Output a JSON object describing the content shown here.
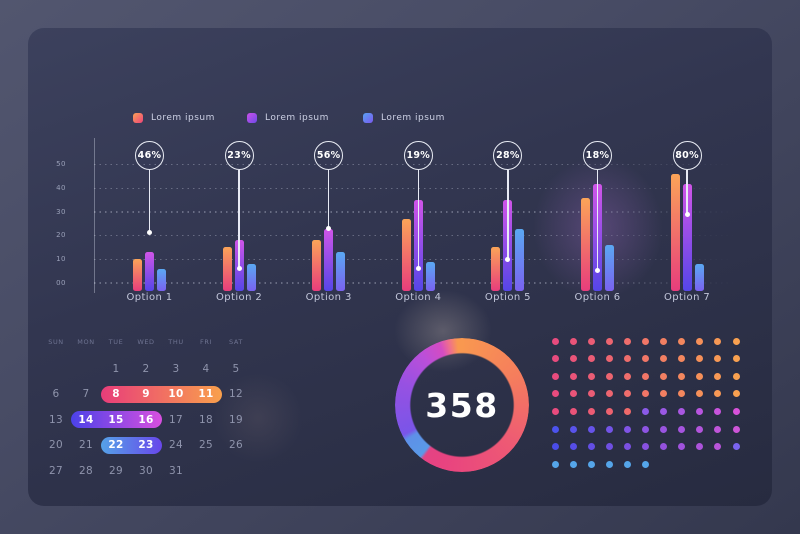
{
  "colors": {
    "page_bg_top": "#52566f",
    "page_bg_bottom": "#34384e",
    "panel_top": "#3c415d",
    "panel_bottom": "#272b40",
    "grid_dots": "#e1e6f6",
    "text_light": "#ccd0e4",
    "text_muted": "#8f94ac"
  },
  "legend": {
    "items": [
      {
        "label": "Lorem ipsum",
        "color_top": "#f9a256",
        "color_bottom": "#ee4379"
      },
      {
        "label": "Lorem ipsum",
        "color_top": "#cb50e8",
        "color_bottom": "#6f4ae8"
      },
      {
        "label": "Lorem ipsum",
        "color_top": "#58a2f0",
        "color_bottom": "#7a58f0"
      }
    ]
  },
  "chart_data": {
    "type": "bar",
    "categories": [
      "Option 1",
      "Option 2",
      "Option 3",
      "Option 4",
      "Option 5",
      "Option 6",
      "Option 7"
    ],
    "series": [
      {
        "name": "Lorem ipsum",
        "color_top": "#fba458",
        "color_bottom": "#e83d7c",
        "values": [
          10,
          15,
          18,
          27,
          15,
          36,
          46
        ]
      },
      {
        "name": "Lorem ipsum",
        "color_top": "#d055e8",
        "color_bottom": "#5546e8",
        "values": [
          13,
          18,
          23,
          35,
          35,
          42,
          42
        ]
      },
      {
        "name": "Lorem ipsum",
        "color_top": "#5aa8f2",
        "color_bottom": "#7a62f0",
        "values": [
          6,
          8,
          13,
          9,
          23,
          16,
          8
        ]
      }
    ],
    "badges": [
      "46%",
      "23%",
      "56%",
      "19%",
      "28%",
      "18%",
      "80%"
    ],
    "pointer_values": [
      21,
      6,
      23,
      6,
      10,
      5,
      29
    ],
    "y_ticks": [
      "50",
      "40",
      "30",
      "20",
      "10",
      "00"
    ],
    "ylim": [
      0,
      50
    ],
    "grid": "dotted horizontal",
    "legend_position": "top"
  },
  "calendar": {
    "weekdays": [
      "SUN",
      "MON",
      "TUE",
      "WED",
      "THU",
      "FRI",
      "SAT"
    ],
    "weeks": [
      [
        "",
        "",
        "1",
        "2",
        "3",
        "4",
        "5"
      ],
      [
        "6",
        "7",
        "8",
        "9",
        "10",
        "11",
        "12"
      ],
      [
        "13",
        "14",
        "15",
        "16",
        "17",
        "18",
        "19"
      ],
      [
        "20",
        "21",
        "22",
        "23",
        "24",
        "25",
        "26"
      ],
      [
        "27",
        "28",
        "29",
        "30",
        "31",
        "",
        ""
      ]
    ],
    "ranges": [
      {
        "week": 1,
        "col_start": 2,
        "col_end": 5,
        "color_left": "#e83d7a",
        "color_right": "#f9a04c"
      },
      {
        "week": 2,
        "col_start": 1,
        "col_end": 3,
        "color_left": "#4b42e8",
        "color_right": "#d84fe0"
      },
      {
        "week": 3,
        "col_start": 2,
        "col_end": 3,
        "color_left": "#55a2e8",
        "color_right": "#6847ea"
      }
    ]
  },
  "donut": {
    "value": "358",
    "segments": [
      {
        "color": "#f99850",
        "deg": 0
      },
      {
        "color": "#f57d5d",
        "deg": 62
      },
      {
        "color": "#ee5a74",
        "deg": 128
      },
      {
        "color": "#e84380",
        "deg": 198
      },
      {
        "color": "#e44384",
        "deg": 216
      },
      {
        "color": "#5a9ae8",
        "deg": 219
      },
      {
        "color": "#5e90e8",
        "deg": 238
      },
      {
        "color": "#7a55e8",
        "deg": 243
      },
      {
        "color": "#9751e2",
        "deg": 290
      },
      {
        "color": "#bb4fd9",
        "deg": 322
      },
      {
        "color": "#d44cc2",
        "deg": 340
      },
      {
        "color": "#ee6f8e",
        "deg": 348
      },
      {
        "color": "#f99850",
        "deg": 356
      }
    ]
  },
  "dot_matrix": {
    "rows": [
      {
        "segments": [
          {
            "from": "#e84b7e",
            "to": "#f9a150",
            "count": 11
          }
        ]
      },
      {
        "segments": [
          {
            "from": "#e84b7e",
            "to": "#f9a150",
            "count": 11
          }
        ]
      },
      {
        "segments": [
          {
            "from": "#e84b7e",
            "to": "#f9a150",
            "count": 11
          }
        ]
      },
      {
        "segments": [
          {
            "from": "#e84b7e",
            "to": "#f9a150",
            "count": 11
          }
        ]
      },
      {
        "segments": [
          {
            "from": "#e84b7e",
            "to": "#f06a6a",
            "count": 5
          },
          {
            "from": "#8a5ae8",
            "to": "#d852da",
            "count": 6
          }
        ]
      },
      {
        "segments": [
          {
            "from": "#4c53ee",
            "to": "#cd55d8",
            "count": 11
          }
        ]
      },
      {
        "segments": [
          {
            "from": "#4a4ce8",
            "to": "#c555d8",
            "count": 11
          }
        ],
        "override_last": "#7a64f0"
      },
      {
        "segments": [
          {
            "from": "#55a5e9",
            "to": "#55a5e9",
            "count": 6
          }
        ]
      }
    ]
  }
}
